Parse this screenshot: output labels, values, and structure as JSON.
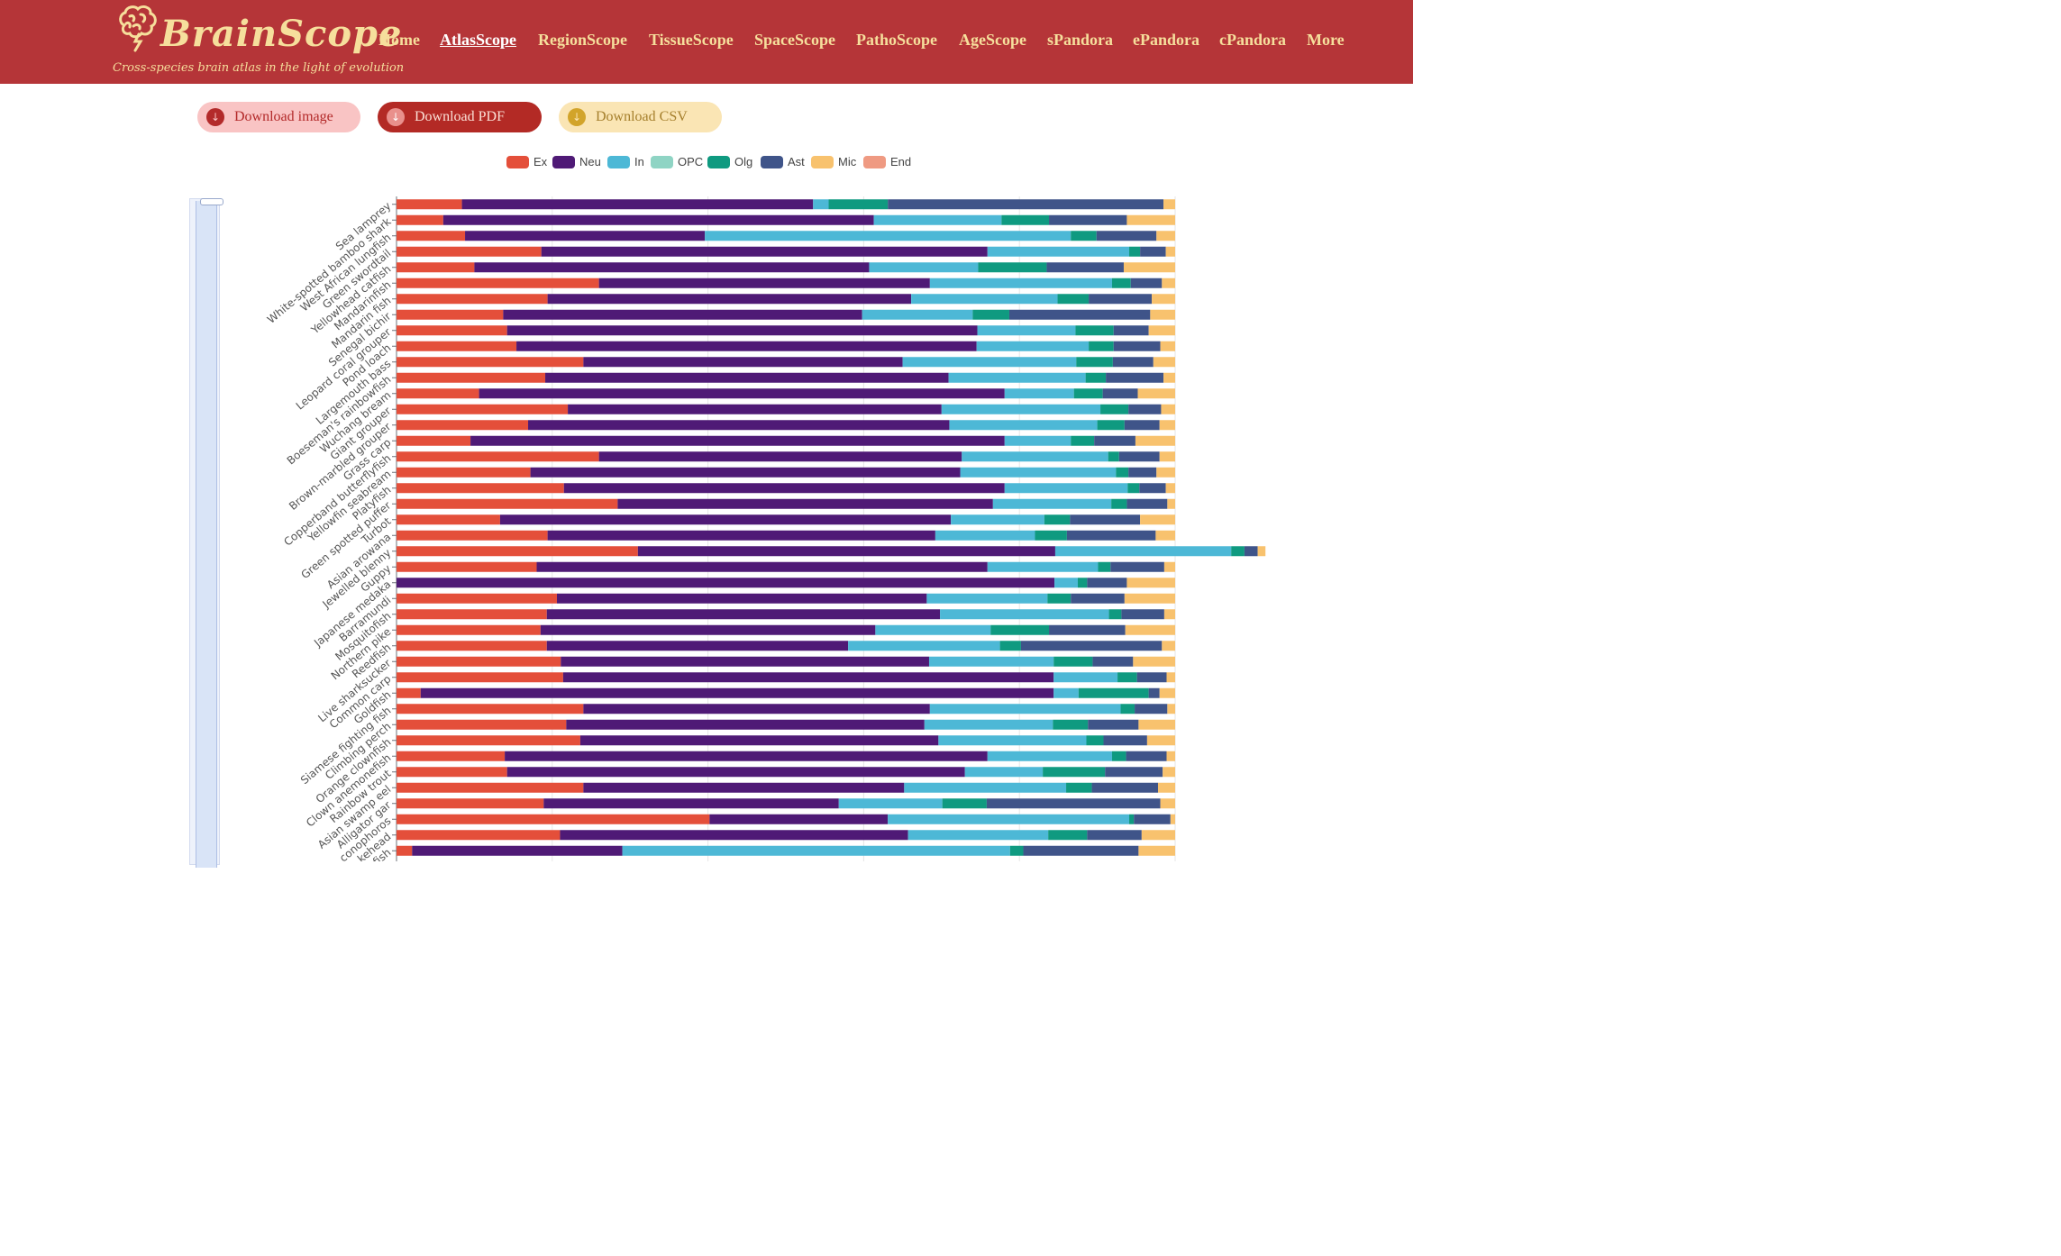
{
  "header": {
    "logo_title": "BrainScope",
    "logo_subtitle": "Cross-species brain atlas in the light of evolution",
    "logo_icon": "brain-icon",
    "nav": [
      "Home",
      "AtlasScope",
      "RegionScope",
      "TissueScope",
      "SpaceScope",
      "PathoScope",
      "AgeScope",
      "sPandora",
      "ePandora",
      "cPandora",
      "More"
    ],
    "active_nav": "AtlasScope"
  },
  "toolbar": {
    "download_image": "Download image",
    "download_pdf": "Download PDF",
    "download_csv": "Download CSV",
    "download_icon": "download-icon"
  },
  "colors": {
    "header_bg": "#b53538",
    "logo_text": "#f6df9c"
  },
  "chart_data": {
    "type": "bar",
    "orientation": "horizontal",
    "stacked": true,
    "normalized": true,
    "xlim": [
      0,
      1
    ],
    "legend_position": "top",
    "categories": [
      "Sea lamprey",
      "White-spotted bamboo shark",
      "West African lungfish",
      "Green swordtail",
      "Yellowhead catfish",
      "Mandarinfish",
      "Mandarin fish",
      "Senegal bichir",
      "Leopard coral grouper",
      "Pond loach",
      "Largemouth bass",
      "Boeseman's rainbowfish",
      "Wuchang bream",
      "Giant grouper",
      "Brown-marbled grouper",
      "Grass carp",
      "Copperband butterflyfish",
      "Yellowfin seabream",
      "Platyfish",
      "Green spotted puffer",
      "Turbot",
      "Asian arowana",
      "Jewelled blenny",
      "Guppy",
      "Japanese medaka",
      "Barramundi",
      "Mosquitofish",
      "Northern pike",
      "Reedfish",
      "Live sharksucker",
      "Common carp",
      "Goldfish",
      "Siamese fighting fish",
      "Climbing perch",
      "Orange clownfish",
      "Clown anemonefish",
      "Rainbow trout",
      "Asian swamp eel",
      "Alligator gar",
      "conophoros",
      "kehead",
      "fish"
    ],
    "series": [
      {
        "name": "Ex",
        "color": "#e44f3a",
        "values": [
          0.084,
          0.06,
          0.088,
          0.186,
          0.1,
          0.26,
          0.194,
          0.137,
          0.142,
          0.154,
          0.24,
          0.191,
          0.106,
          0.22,
          0.169,
          0.095,
          0.26,
          0.172,
          0.215,
          0.284,
          0.133,
          0.194,
          0.31,
          0.18,
          0.0,
          0.206,
          0.193,
          0.185,
          0.193,
          0.211,
          0.214,
          0.031,
          0.24,
          0.218,
          0.236,
          0.139,
          0.142,
          0.24,
          0.189,
          0.402,
          0.21,
          0.02
        ]
      },
      {
        "name": "Neu",
        "color": "#4f1a76",
        "values": [
          0.451,
          0.553,
          0.308,
          0.573,
          0.507,
          0.425,
          0.467,
          0.461,
          0.604,
          0.591,
          0.41,
          0.518,
          0.675,
          0.48,
          0.541,
          0.686,
          0.466,
          0.552,
          0.566,
          0.482,
          0.579,
          0.498,
          0.536,
          0.579,
          0.845,
          0.475,
          0.505,
          0.43,
          0.387,
          0.473,
          0.63,
          0.813,
          0.445,
          0.46,
          0.46,
          0.62,
          0.588,
          0.412,
          0.379,
          0.229,
          0.447,
          0.27
        ]
      },
      {
        "name": "In",
        "color": "#4db8d6",
        "values": [
          0.02,
          0.164,
          0.47,
          0.182,
          0.14,
          0.234,
          0.188,
          0.142,
          0.126,
          0.144,
          0.223,
          0.176,
          0.089,
          0.204,
          0.19,
          0.085,
          0.188,
          0.2,
          0.158,
          0.152,
          0.12,
          0.128,
          0.226,
          0.142,
          0.03,
          0.155,
          0.217,
          0.148,
          0.195,
          0.16,
          0.082,
          0.032,
          0.245,
          0.165,
          0.19,
          0.16,
          0.1,
          0.208,
          0.133,
          0.31,
          0.18,
          0.498
        ]
      },
      {
        "name": "OPC",
        "color": "#8fd4c4",
        "values": [
          0.0,
          0.0,
          0.0,
          0.0,
          0.0,
          0.0,
          0.0,
          0.0,
          0.0,
          0.0,
          0.0,
          0.0,
          0.0,
          0.0,
          0.0,
          0.0,
          0.0,
          0.0,
          0.0,
          0.0,
          0.0,
          0.0,
          0.0,
          0.0,
          0.0,
          0.0,
          0.0,
          0.0,
          0.0,
          0.0,
          0.0,
          0.0,
          0.0,
          0.0,
          0.0,
          0.0,
          0.0,
          0.0,
          0.0,
          0.0,
          0.0,
          0.0
        ]
      },
      {
        "name": "Olg",
        "color": "#0f9a80",
        "values": [
          0.076,
          0.061,
          0.033,
          0.014,
          0.088,
          0.024,
          0.04,
          0.047,
          0.049,
          0.032,
          0.047,
          0.026,
          0.037,
          0.036,
          0.035,
          0.03,
          0.014,
          0.016,
          0.015,
          0.02,
          0.033,
          0.041,
          0.017,
          0.016,
          0.012,
          0.03,
          0.016,
          0.075,
          0.027,
          0.05,
          0.025,
          0.09,
          0.018,
          0.045,
          0.022,
          0.018,
          0.08,
          0.033,
          0.057,
          0.006,
          0.05,
          0.017
        ]
      },
      {
        "name": "Ast",
        "color": "#3f5489",
        "values": [
          0.354,
          0.1,
          0.077,
          0.033,
          0.099,
          0.04,
          0.081,
          0.181,
          0.045,
          0.06,
          0.052,
          0.074,
          0.045,
          0.042,
          0.045,
          0.053,
          0.052,
          0.036,
          0.034,
          0.052,
          0.09,
          0.114,
          0.017,
          0.069,
          0.051,
          0.069,
          0.055,
          0.098,
          0.181,
          0.052,
          0.038,
          0.014,
          0.042,
          0.065,
          0.056,
          0.052,
          0.074,
          0.085,
          0.223,
          0.047,
          0.07,
          0.148
        ]
      },
      {
        "name": "Mic",
        "color": "#f8c26e",
        "values": [
          0.015,
          0.062,
          0.024,
          0.012,
          0.066,
          0.017,
          0.03,
          0.032,
          0.034,
          0.019,
          0.028,
          0.015,
          0.048,
          0.018,
          0.02,
          0.051,
          0.02,
          0.024,
          0.012,
          0.01,
          0.045,
          0.025,
          0.01,
          0.014,
          0.062,
          0.065,
          0.014,
          0.064,
          0.017,
          0.054,
          0.011,
          0.02,
          0.01,
          0.047,
          0.036,
          0.011,
          0.016,
          0.022,
          0.019,
          0.006,
          0.043,
          0.047
        ]
      },
      {
        "name": "End",
        "color": "#ef9a82",
        "values": [
          0.0,
          0.0,
          0.0,
          0.0,
          0.0,
          0.0,
          0.0,
          0.0,
          0.0,
          0.0,
          0.0,
          0.0,
          0.0,
          0.0,
          0.0,
          0.0,
          0.0,
          0.0,
          0.0,
          0.0,
          0.0,
          0.0,
          0.0,
          0.0,
          0.0,
          0.0,
          0.0,
          0.0,
          0.0,
          0.0,
          0.0,
          0.0,
          0.0,
          0.0,
          0.0,
          0.0,
          0.0,
          0.0,
          0.0,
          0.0,
          0.0,
          0.0
        ]
      }
    ],
    "legend": [
      "Ex",
      "Neu",
      "In",
      "OPC",
      "Olg",
      "Ast",
      "Mic",
      "End"
    ],
    "zoom_slider_range": [
      0.0,
      1.0
    ],
    "grid": true
  }
}
